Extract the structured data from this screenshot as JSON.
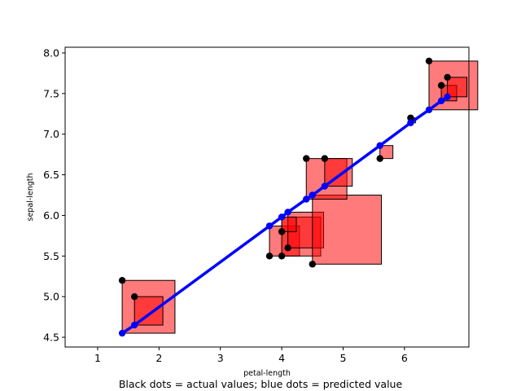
{
  "chart_data": {
    "type": "scatter",
    "title": "",
    "xlabel": "petal-length",
    "ylabel": "sepal-length",
    "caption": "Black dots = actual values; blue dots = predicted value",
    "xlim": [
      0.47,
      7.05
    ],
    "ylim": [
      4.38,
      8.07
    ],
    "xticks": [
      1,
      2,
      3,
      4,
      5,
      6
    ],
    "yticks": [
      4.5,
      5.0,
      5.5,
      6.0,
      6.5,
      7.0,
      7.5,
      8.0
    ],
    "grid": false,
    "colors": {
      "actual": "#000000",
      "predicted": "#0000ff",
      "residual_square_fill": "#ff0000",
      "residual_square_edge": "#000000"
    },
    "series": [
      {
        "marker_color": "#000000",
        "points": [
          [
            1.4,
            5.2
          ],
          [
            1.6,
            5.0
          ],
          [
            3.8,
            5.5
          ],
          [
            4.0,
            5.5
          ],
          [
            4.1,
            5.6
          ],
          [
            4.0,
            5.8
          ],
          [
            4.5,
            5.4
          ],
          [
            4.4,
            6.7
          ],
          [
            4.7,
            6.7
          ],
          [
            5.6,
            6.7
          ],
          [
            6.1,
            7.2
          ],
          [
            6.4,
            7.9
          ],
          [
            6.6,
            7.6
          ],
          [
            6.7,
            7.7
          ]
        ]
      },
      {
        "marker_color": "#0000ff",
        "points": [
          [
            1.4,
            4.55
          ],
          [
            1.6,
            4.65
          ],
          [
            3.8,
            5.87
          ],
          [
            4.0,
            5.98
          ],
          [
            4.1,
            6.04
          ],
          [
            4.4,
            6.2
          ],
          [
            4.5,
            6.25
          ],
          [
            4.7,
            6.36
          ],
          [
            5.6,
            6.86
          ],
          [
            6.1,
            7.14
          ],
          [
            6.4,
            7.3
          ],
          [
            6.6,
            7.41
          ],
          [
            6.7,
            7.46
          ]
        ]
      }
    ]
  }
}
